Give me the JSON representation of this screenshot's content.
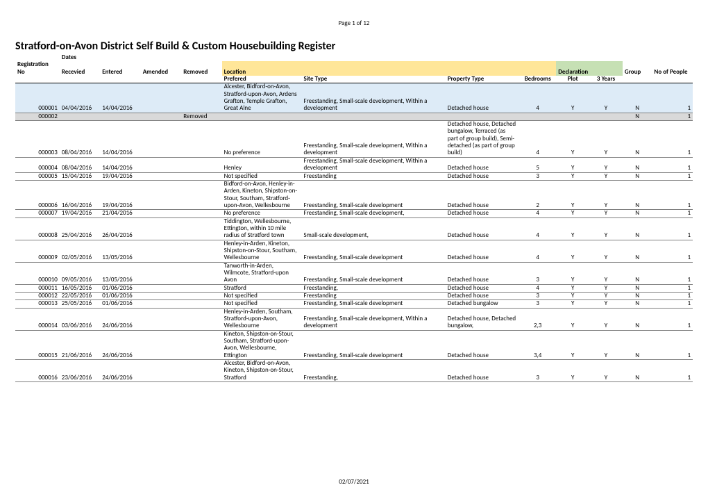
{
  "page_number_text": "Page 1 of 12",
  "title": "Stratford-on-Avon District Self Build & Custom Housebuilding Register",
  "footer_date": "02/07/2021",
  "colors": {
    "highlight_location": "#ffe699",
    "highlight_declaration": "#c6e0b4",
    "row_shade": "#ddebf7",
    "row_removed": "#d9d9d9",
    "row_border": "#7f7f7f"
  },
  "headers": {
    "super": {
      "dates": "Dates",
      "reg_no": "Registration No",
      "received": "Recevied",
      "entered": "Entered",
      "amended": "Amended",
      "removed": "Removed",
      "location": "Location",
      "declaration": "Declaration",
      "group": "Group",
      "no_people": "No of People"
    },
    "sub": {
      "prefered": "Prefered",
      "site_type": "Site Type",
      "property_type": "Property Type",
      "bedrooms": "Bedrooms",
      "plot": "Plot",
      "three_years": "3 Years"
    }
  },
  "rows": [
    {
      "reg": "000001",
      "received": "04/04/2016",
      "entered": "14/04/2016",
      "amended": "",
      "removed": "",
      "prefered": "Alcester, Bidford-on-Avon, Stratford-upon-Avon, Ardens Grafton, Temple Grafton, Great Alne",
      "site": "Freestanding, Small-scale development, Within a development",
      "prop": "Detached house",
      "bed": "4",
      "plot": "Y",
      "yrs": "Y",
      "group": "N",
      "people": "1",
      "shade": true
    },
    {
      "reg": "000002",
      "received": "",
      "entered": "",
      "amended": "",
      "removed": "Removed",
      "prefered": "",
      "site": "",
      "prop": "",
      "bed": "",
      "plot": "",
      "yrs": "",
      "group": "N",
      "people": "1",
      "removed_row": true
    },
    {
      "reg": "000003",
      "received": "08/04/2016",
      "entered": "14/04/2016",
      "amended": "",
      "removed": "",
      "prefered": "No preference",
      "site": "Freestanding, Small-scale development, Within a development",
      "prop": "Detached house, Detached bungalow, Terraced (as part of group build), Semi-detached (as part of group build)",
      "bed": "4",
      "plot": "Y",
      "yrs": "Y",
      "group": "N",
      "people": "1"
    },
    {
      "reg": "000004",
      "received": "08/04/2016",
      "entered": "14/04/2016",
      "amended": "",
      "removed": "",
      "prefered": "Henley",
      "site": "Freestanding, Small-scale development, Within a development",
      "prop": "Detached house",
      "bed": "5",
      "plot": "Y",
      "yrs": "Y",
      "group": "N",
      "people": "1"
    },
    {
      "reg": "000005",
      "received": "15/04/2016",
      "entered": "19/04/2016",
      "amended": "",
      "removed": "",
      "prefered": "Not specified",
      "site": "Freestanding",
      "prop": "Detached house",
      "bed": "3",
      "plot": "Y",
      "yrs": "Y",
      "group": "N",
      "people": "1"
    },
    {
      "reg": "000006",
      "received": "16/04/2016",
      "entered": "19/04/2016",
      "amended": "",
      "removed": "",
      "prefered": "Bidford-on-Avon, Henley-in-Arden, Kineton, Shipston-on-Stour, Southam, Stratford-upon-Avon, Wellesbourne",
      "site": "Freestanding, Small-scale development",
      "prop": "Detached house",
      "bed": "2",
      "plot": "Y",
      "yrs": "Y",
      "group": "N",
      "people": "1"
    },
    {
      "reg": "000007",
      "received": "19/04/2016",
      "entered": "21/04/2016",
      "amended": "",
      "removed": "",
      "prefered": "No preference",
      "site": "Freestanding, Small-scale development,",
      "prop": "Detached house",
      "bed": "4",
      "plot": "Y",
      "yrs": "Y",
      "group": "N",
      "people": "1"
    },
    {
      "reg": "000008",
      "received": "25/04/2016",
      "entered": "26/04/2016",
      "amended": "",
      "removed": "",
      "prefered": "Tiddington, Wellesbourne, Ettington, within 10 mile radius of Stratford town",
      "site": "Small-scale development,",
      "prop": "Detached house",
      "bed": "4",
      "plot": "Y",
      "yrs": "Y",
      "group": "N",
      "people": "1"
    },
    {
      "reg": "000009",
      "received": "02/05/2016",
      "entered": "13/05/2016",
      "amended": "",
      "removed": "",
      "prefered": "Henley-in-Arden, Kineton, Shipston-on-Stour, Southam, Wellesbourne",
      "site": "Freestanding, Small-scale development",
      "prop": "Detached house",
      "bed": "4",
      "plot": "Y",
      "yrs": "Y",
      "group": "N",
      "people": "1"
    },
    {
      "reg": "000010",
      "received": "09/05/2016",
      "entered": "13/05/2016",
      "amended": "",
      "removed": "",
      "prefered": "Tanworth-in-Arden, Wilmcote, Stratford-upon Avon",
      "site": "Freestanding, Small-scale development",
      "prop": "Detached house",
      "bed": "3",
      "plot": "Y",
      "yrs": "Y",
      "group": "N",
      "people": "1"
    },
    {
      "reg": "000011",
      "received": "16/05/2016",
      "entered": "01/06/2016",
      "amended": "",
      "removed": "",
      "prefered": "Stratford",
      "site": "Freestanding,",
      "prop": "Detached house",
      "bed": "4",
      "plot": "Y",
      "yrs": "Y",
      "group": "N",
      "people": "1"
    },
    {
      "reg": "000012",
      "received": "22/05/2016",
      "entered": "01/06/2016",
      "amended": "",
      "removed": "",
      "prefered": "Not specified",
      "site": "Freestanding",
      "prop": "Detached house",
      "bed": "3",
      "plot": "Y",
      "yrs": "Y",
      "group": "N",
      "people": "1"
    },
    {
      "reg": "000013",
      "received": "25/05/2016",
      "entered": "01/06/2016",
      "amended": "",
      "removed": "",
      "prefered": "Not specified",
      "site": "Freestanding, Small-scale development",
      "prop": "Detached bungalow",
      "bed": "3",
      "plot": "Y",
      "yrs": "Y",
      "group": "N",
      "people": "1"
    },
    {
      "reg": "000014",
      "received": "03/06/2016",
      "entered": "24/06/2016",
      "amended": "",
      "removed": "",
      "prefered": "Henley-in-Arden, Southam, Stratford-upon-Avon, Wellesbourne",
      "site": "Freestanding, Small-scale development, Within a development",
      "prop": "Detached house, Detached bungalow,",
      "bed": "2,3",
      "plot": "Y",
      "yrs": "Y",
      "group": "N",
      "people": "1"
    },
    {
      "reg": "000015",
      "received": "21/06/2016",
      "entered": "24/06/2016",
      "amended": "",
      "removed": "",
      "prefered": "Kineton, Shipston-on-Stour, Southam, Stratford-upon-Avon, Wellesbourne, Ettington",
      "site": "Freestanding, Small-scale development",
      "prop": "Detached house",
      "bed": "3,4",
      "plot": "Y",
      "yrs": "Y",
      "group": "N",
      "people": "1"
    },
    {
      "reg": "000016",
      "received": "23/06/2016",
      "entered": "24/06/2016",
      "amended": "",
      "removed": "",
      "prefered": "Alcester, Bidford-on-Avon, Kineton, Shipston-on-Stour, Stratford",
      "site": "Freestanding,",
      "prop": "Detached house",
      "bed": "3",
      "plot": "Y",
      "yrs": "Y",
      "group": "N",
      "people": "1"
    }
  ]
}
